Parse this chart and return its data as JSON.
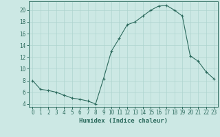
{
  "x": [
    0,
    1,
    2,
    3,
    4,
    5,
    6,
    7,
    8,
    9,
    10,
    11,
    12,
    13,
    14,
    15,
    16,
    17,
    18,
    19,
    20,
    21,
    22,
    23
  ],
  "y": [
    8,
    6.5,
    6.3,
    6.0,
    5.5,
    5.0,
    4.8,
    4.5,
    4.0,
    8.3,
    13.0,
    15.2,
    17.5,
    18.0,
    19.0,
    20.0,
    20.7,
    20.8,
    20.0,
    19.0,
    12.2,
    11.3,
    9.5,
    8.3
  ],
  "xlabel": "Humidex (Indice chaleur)",
  "ylim": [
    3.5,
    21.5
  ],
  "xlim": [
    -0.5,
    23.5
  ],
  "yticks": [
    4,
    6,
    8,
    10,
    12,
    14,
    16,
    18,
    20
  ],
  "xticks": [
    0,
    1,
    2,
    3,
    4,
    5,
    6,
    7,
    8,
    9,
    10,
    11,
    12,
    13,
    14,
    15,
    16,
    17,
    18,
    19,
    20,
    21,
    22,
    23
  ],
  "line_color": "#2d6b5e",
  "marker": "+",
  "bg_color": "#cce8e4",
  "grid_color": "#aed4cf",
  "tick_label_color": "#2d6b5e",
  "xlabel_color": "#2d6b5e",
  "spine_color": "#2d6b5e",
  "font_size": 5.5,
  "xlabel_font_size": 6.5
}
